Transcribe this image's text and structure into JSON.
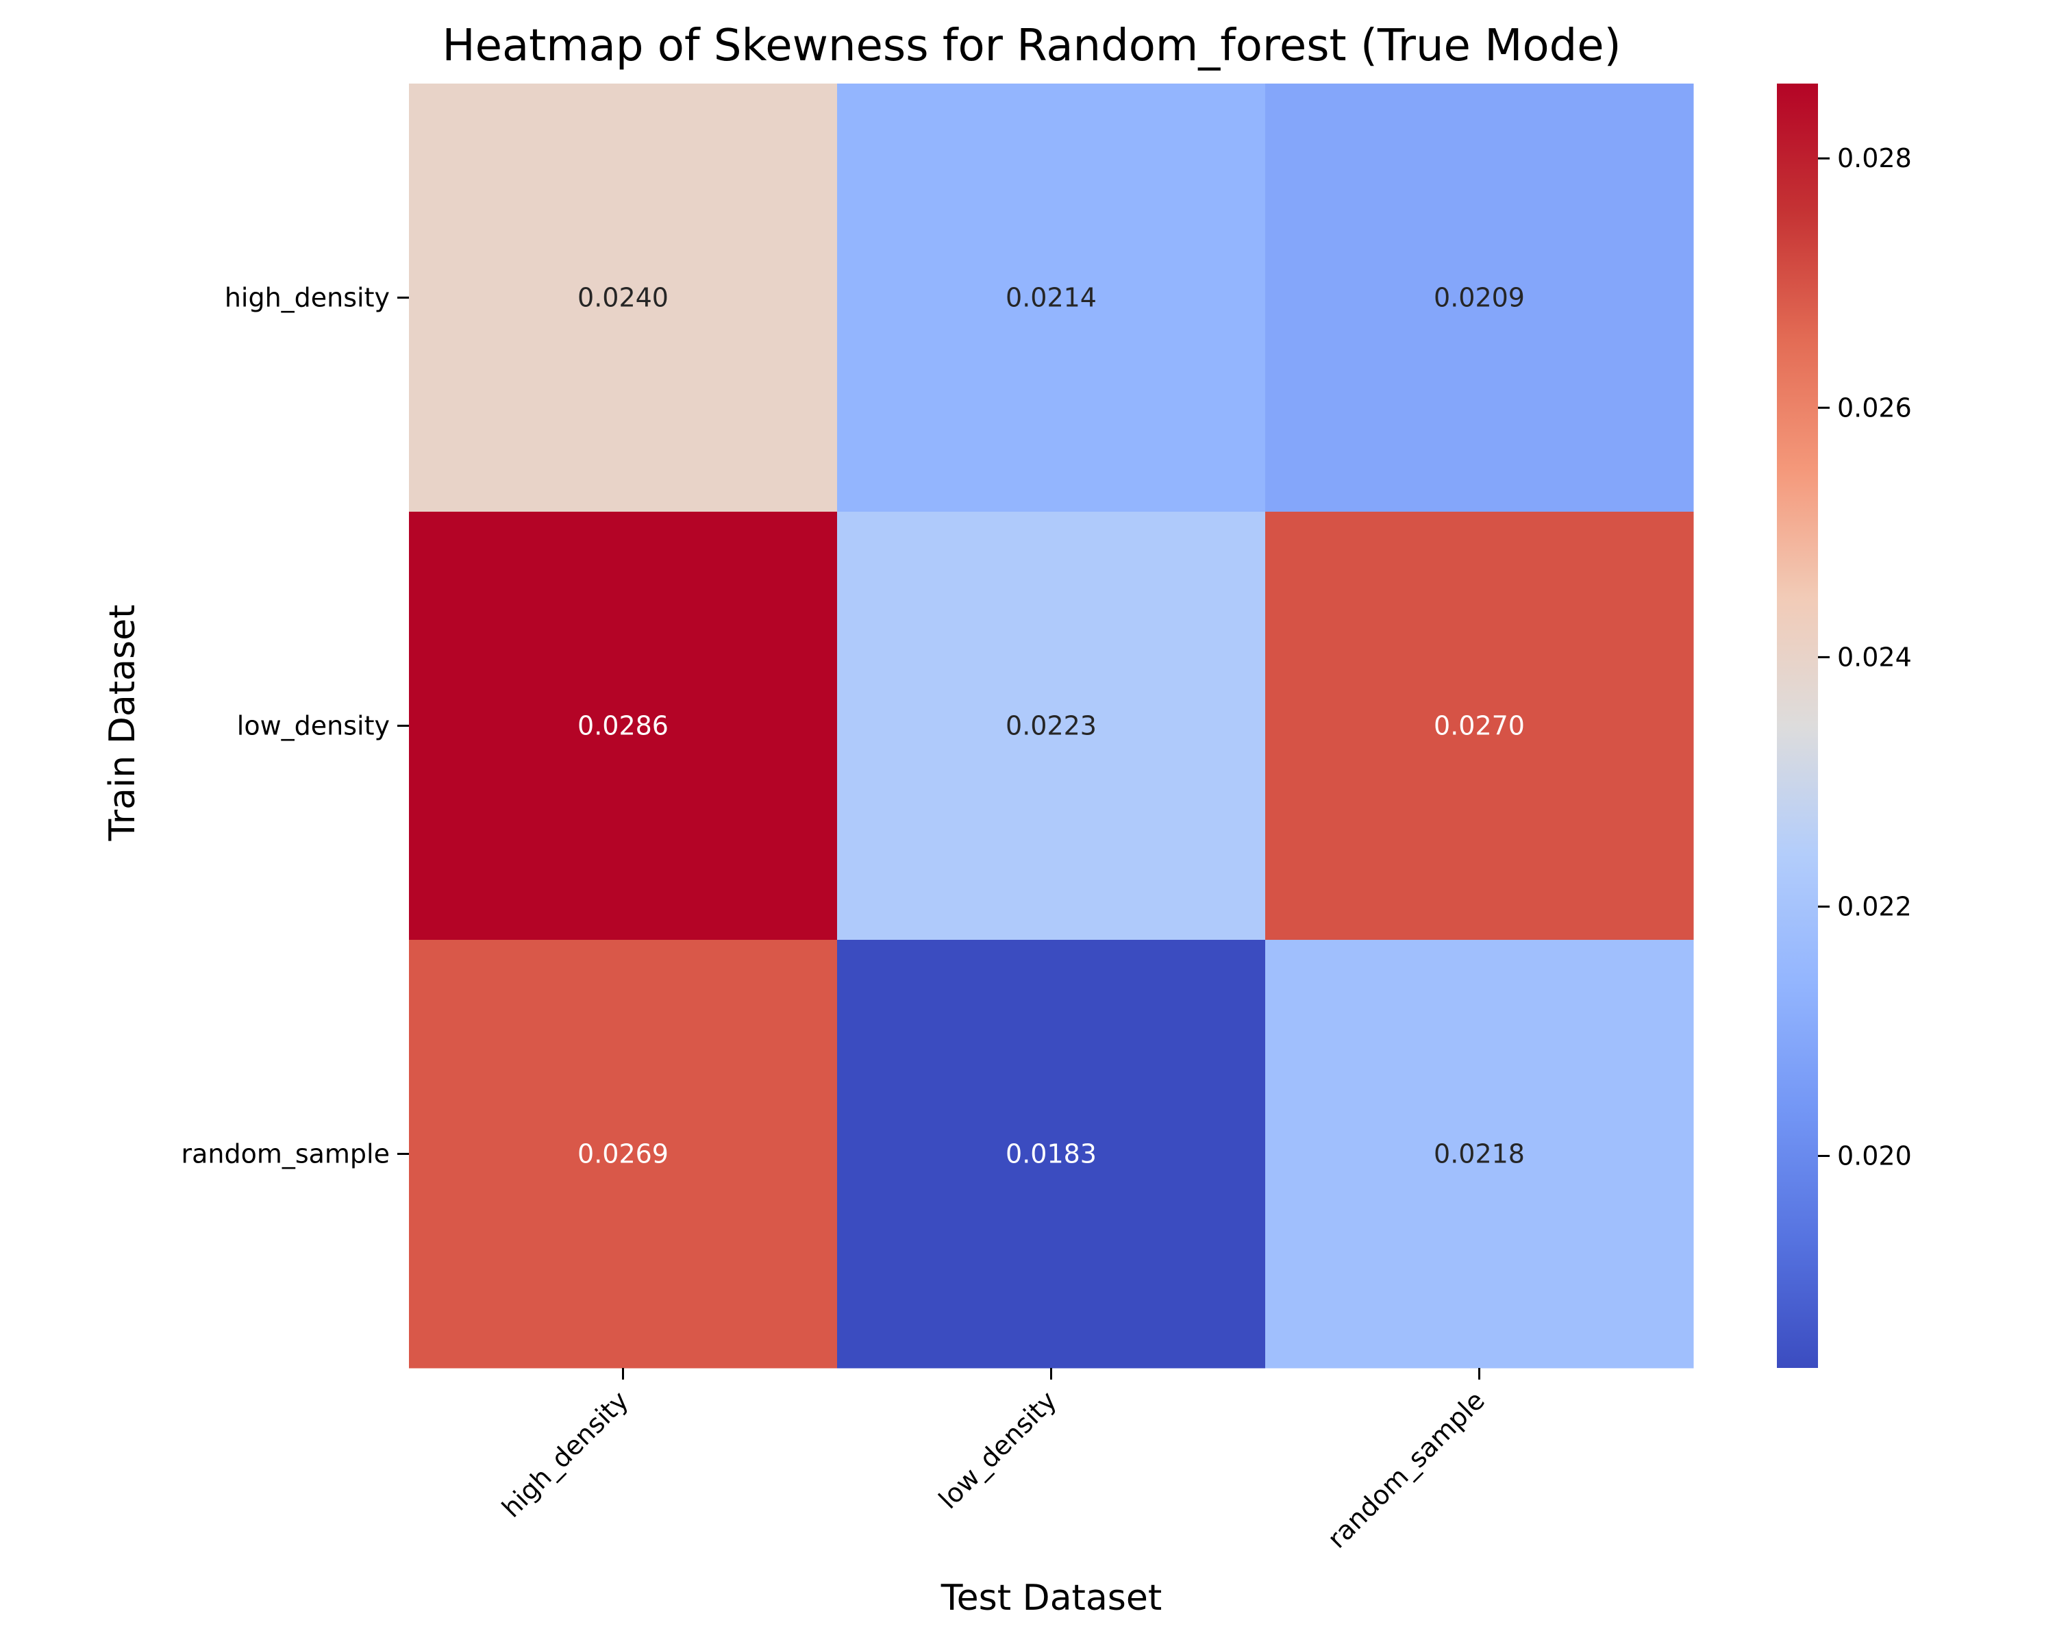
{
  "chart_data": {
    "type": "heatmap",
    "title": "Heatmap of Skewness for Random_forest (True Mode)",
    "xlabel": "Test Dataset",
    "ylabel": "Train Dataset",
    "x_categories": [
      "high_density",
      "low_density",
      "random_sample"
    ],
    "y_categories": [
      "high_density",
      "low_density",
      "random_sample"
    ],
    "values": [
      [
        0.024,
        0.0214,
        0.0209
      ],
      [
        0.0286,
        0.0223,
        0.027
      ],
      [
        0.0269,
        0.0183,
        0.0218
      ]
    ],
    "cell_labels": [
      [
        "0.0240",
        "0.0214",
        "0.0209"
      ],
      [
        "0.0286",
        "0.0223",
        "0.0270"
      ],
      [
        "0.0269",
        "0.0183",
        "0.0218"
      ]
    ],
    "colormap": "coolwarm",
    "color_range": [
      0.0183,
      0.0286
    ],
    "colorbar_ticks": [
      0.02,
      0.022,
      0.024,
      0.026,
      0.028
    ],
    "colorbar_tick_labels": [
      "0.020",
      "0.022",
      "0.024",
      "0.026",
      "0.028"
    ],
    "legend": "colorbar-right",
    "grid": false
  }
}
